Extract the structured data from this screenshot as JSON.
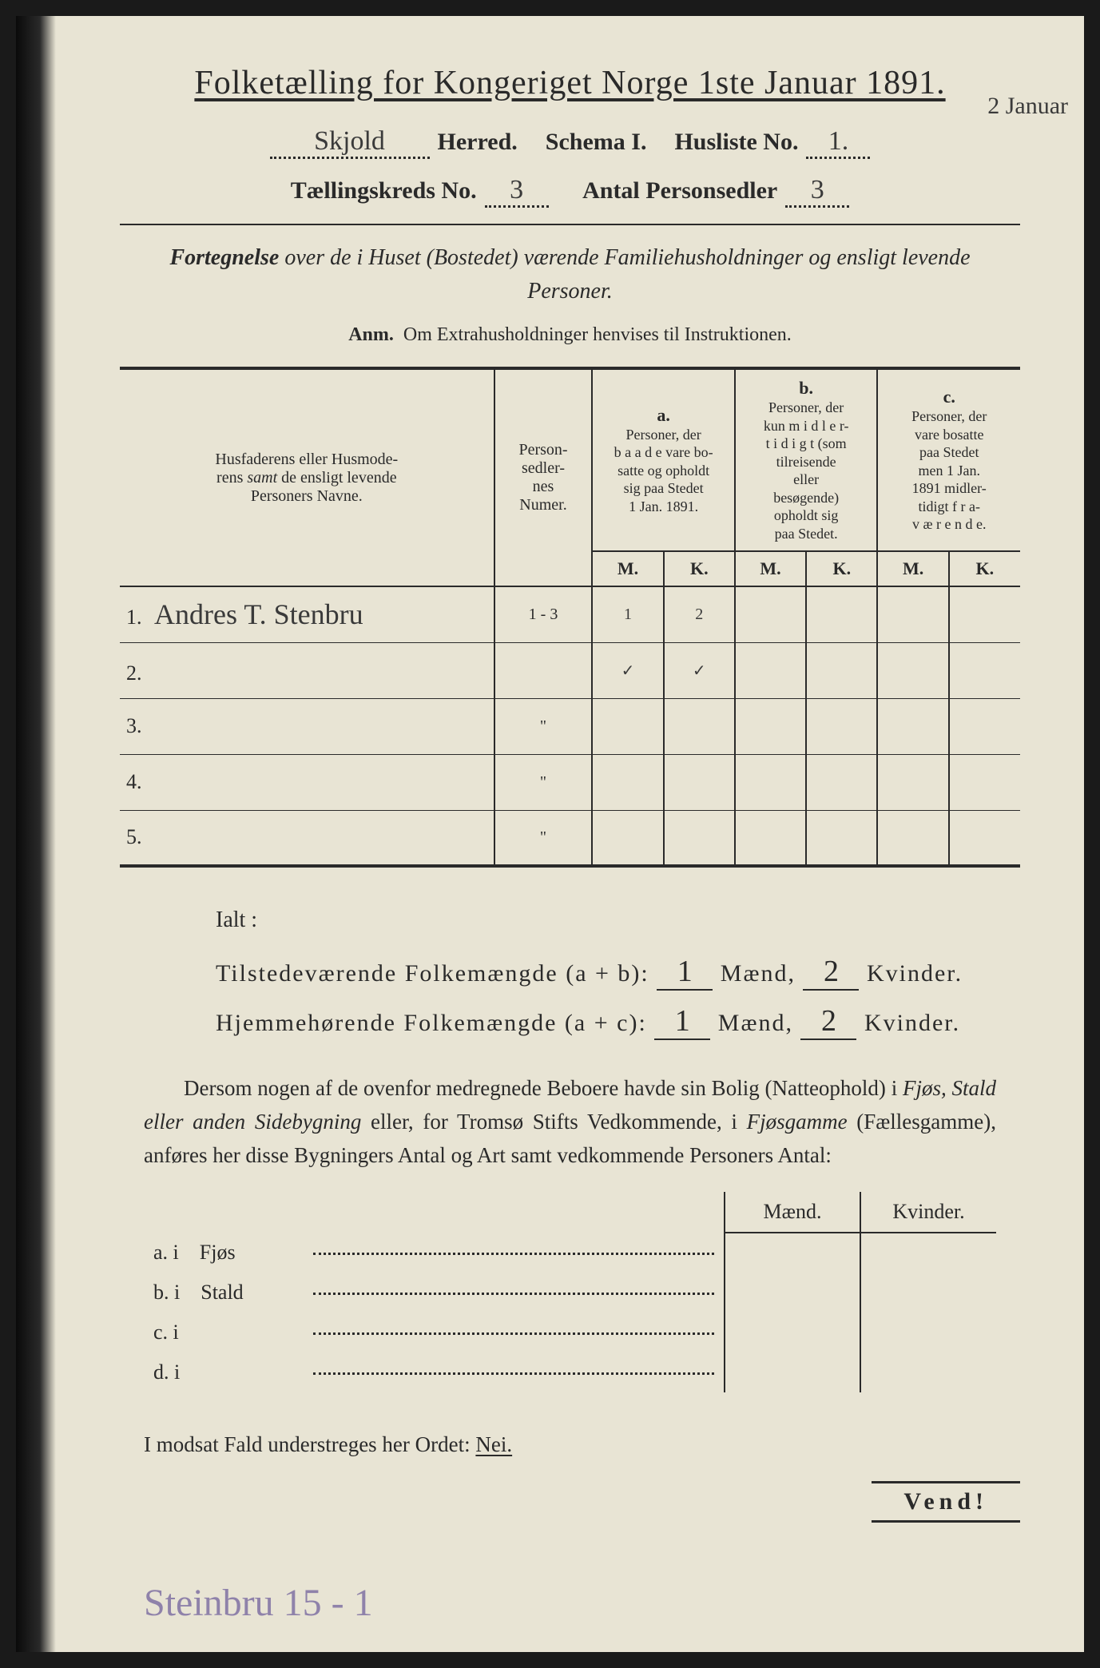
{
  "title": "Folketælling for Kongeriget Norge 1ste Januar 1891.",
  "header": {
    "herred_value": "Skjold",
    "herred_label": "Herred.",
    "schema_label": "Schema I.",
    "husliste_label": "Husliste No.",
    "husliste_value": "1.",
    "kreds_label": "Tællingskreds No.",
    "kreds_value": "3",
    "antal_label": "Antal Personsedler",
    "antal_value": "3",
    "margin_note": "2 Januar"
  },
  "subtitle_bold": "Fortegnelse",
  "subtitle_rest": "over de i Huset (Bostedet) værende Familiehusholdninger og ensligt levende Personer.",
  "anm_label": "Anm.",
  "anm_text": "Om Extrahusholdninger henvises til Instruktionen.",
  "table": {
    "col_name": "Husfaderens eller Husmoderens samt de ensligt levende Personers Navne.",
    "col_num": "Personsedlernes Numer.",
    "grp_a_label": "a.",
    "grp_a_desc": "Personer, der baade vare bosatte og opholdt sig paa Stedet 1 Jan. 1891.",
    "grp_b_label": "b.",
    "grp_b_desc": "Personer, der kun midlertidigt (som tilreisende eller besøgende) opholdt sig paa Stedet.",
    "grp_c_label": "c.",
    "grp_c_desc": "Personer, der vare bosatte paa Stedet men 1 Jan. 1891 midlertidigt fraværende.",
    "M": "M.",
    "K": "K.",
    "rows": [
      {
        "n": "1.",
        "name": "Andres T. Stenbru",
        "num": "1 - 3",
        "aM": "1",
        "aK": "2",
        "bM": "",
        "bK": "",
        "cM": "",
        "cK": ""
      },
      {
        "n": "2.",
        "name": "",
        "num": "",
        "aM": "✓",
        "aK": "✓",
        "bM": "",
        "bK": "",
        "cM": "",
        "cK": ""
      },
      {
        "n": "3.",
        "name": "",
        "num": "",
        "aM": "",
        "aK": "",
        "bM": "",
        "bK": "",
        "cM": "",
        "cK": ""
      },
      {
        "n": "4.",
        "name": "",
        "num": "",
        "aM": "",
        "aK": "",
        "bM": "",
        "bK": "",
        "cM": "",
        "cK": ""
      },
      {
        "n": "5.",
        "name": "",
        "num": "",
        "aM": "",
        "aK": "",
        "bM": "",
        "bK": "",
        "cM": "",
        "cK": ""
      }
    ]
  },
  "summary": {
    "ialt": "Ialt :",
    "line1_label": "Tilstedeværende Folkemængde (a + b):",
    "line2_label": "Hjemmehørende Folkemængde (a + c):",
    "maend": "Mænd,",
    "kvinder": "Kvinder.",
    "l1_m": "1",
    "l1_k": "2",
    "l2_m": "1",
    "l2_k": "2"
  },
  "para": "Dersom nogen af de ovenfor medregnede Beboere havde sin Bolig (Natteophold) i Fjøs, Stald eller anden Sidebygning eller, for Tromsø Stifts Vedkommende, i Fjøsgamme (Fællesgamme), anføres her disse Bygningers Antal og Art samt vedkommende Personers Antal:",
  "bt": {
    "maend": "Mænd.",
    "kvinder": "Kvinder.",
    "rows": [
      {
        "l": "a.  i",
        "t": "Fjøs"
      },
      {
        "l": "b.  i",
        "t": "Stald"
      },
      {
        "l": "c.  i",
        "t": ""
      },
      {
        "l": "d.  i",
        "t": ""
      }
    ]
  },
  "footer": {
    "text": "I modsat Fald understreges her Ordet:",
    "nei": "Nei.",
    "vend": "Vend!",
    "bottom_hand": "Steinbru  15 - 1"
  }
}
